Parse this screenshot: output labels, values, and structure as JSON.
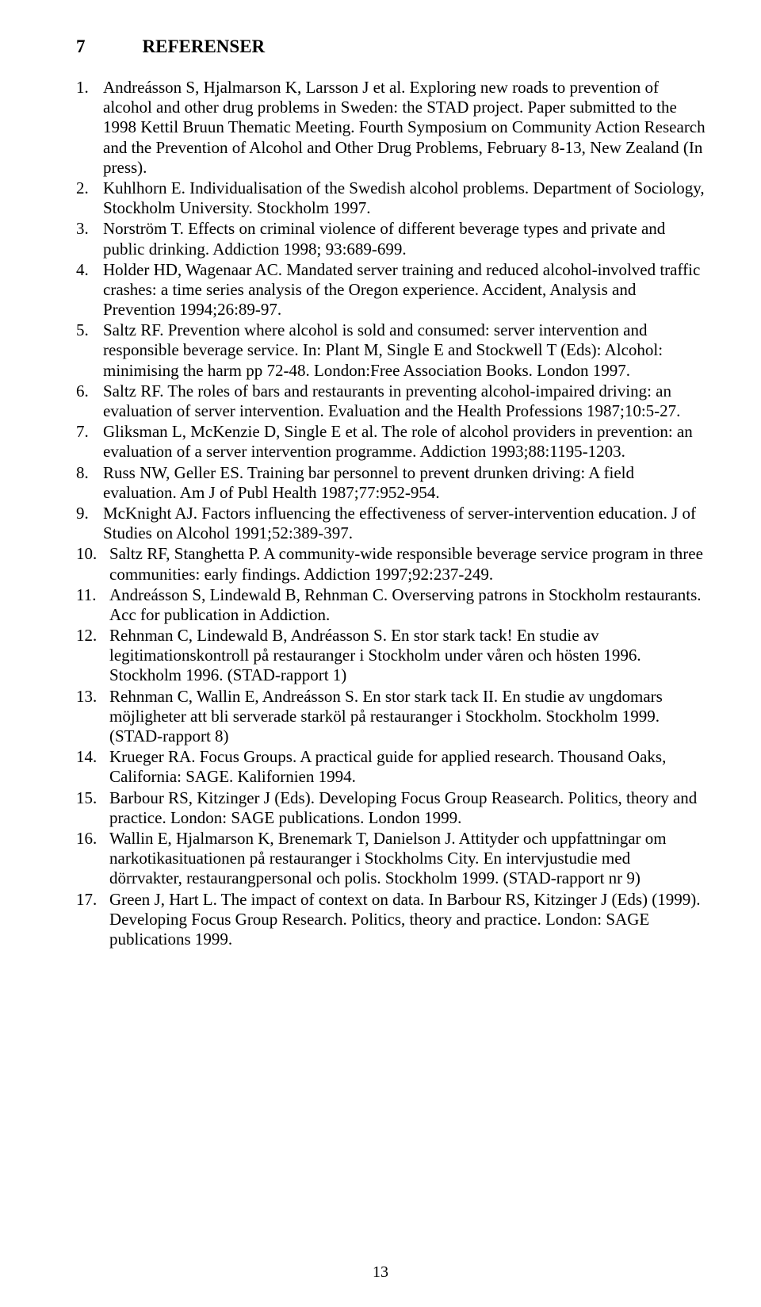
{
  "heading": {
    "number": "7",
    "title": "REFERENSER"
  },
  "references": [
    {
      "num": "1.",
      "text": "Andreásson S, Hjalmarson K, Larsson J et al. Exploring new roads to prevention of alcohol and other drug problems in Sweden: the STAD project. Paper submitted to the 1998 Kettil Bruun Thematic Meeting. Fourth Symposium on Community Action Research and the Prevention of Alcohol and Other Drug Problems, February 8-13, New Zealand (In press)."
    },
    {
      "num": "2.",
      "text": "Kuhlhorn E. Individualisation of the Swedish alcohol problems. Department of Sociology, Stockholm University. Stockholm 1997."
    },
    {
      "num": "3.",
      "text": "Norström T. Effects on criminal violence of different beverage types and private and public drinking. Addiction 1998; 93:689-699."
    },
    {
      "num": "4.",
      "text": "Holder HD, Wagenaar AC. Mandated server training and reduced alcohol-involved traffic crashes: a time series analysis of the Oregon experience. Accident, Analysis and Prevention 1994;26:89-97."
    },
    {
      "num": "5.",
      "text": "Saltz RF. Prevention where alcohol is sold and consumed: server intervention and responsible beverage service. In: Plant M, Single E and Stockwell T (Eds): Alcohol: minimising the harm pp 72-48. London:Free Association Books. London 1997."
    },
    {
      "num": "6.",
      "text": "Saltz RF. The roles of bars and restaurants in preventing alcohol-impaired driving: an evaluation of server intervention. Evaluation and the Health Professions 1987;10:5-27."
    },
    {
      "num": "7.",
      "text": "Gliksman L, McKenzie D, Single E et al. The role of alcohol providers in prevention: an evaluation of a server intervention programme. Addiction 1993;88:1195-1203."
    },
    {
      "num": "8.",
      "text": "Russ NW, Geller ES. Training bar personnel to prevent drunken driving: A field evaluation. Am J of Publ Health 1987;77:952-954."
    },
    {
      "num": "9.",
      "text": "McKnight AJ. Factors influencing the effectiveness of server-intervention education. J of Studies on Alcohol 1991;52:389-397."
    },
    {
      "num": "10.",
      "text": "Saltz RF, Stanghetta P.  A community-wide responsible beverage service program in three communities: early findings. Addiction 1997;92:237-249."
    },
    {
      "num": "11.",
      "text": "Andreásson S, Lindewald B, Rehnman C. Overserving patrons in Stockholm restaurants. Acc for publication in Addiction."
    },
    {
      "num": "12.",
      "text": "Rehnman C, Lindewald B, Andréasson S. En stor stark tack! En studie av legitimationskontroll på restauranger i Stockholm under våren och hösten 1996. Stockholm 1996. (STAD-rapport 1)"
    },
    {
      "num": "13.",
      "text": "Rehnman C, Wallin E, Andreásson S. En stor stark tack II. En studie av ungdomars möjligheter att bli serverade starköl på restauranger i Stockholm. Stockholm 1999. (STAD-rapport 8)"
    },
    {
      "num": "14.",
      "text": "Krueger RA. Focus Groups. A practical guide for applied research. Thousand Oaks, California: SAGE. Kalifornien 1994."
    },
    {
      "num": "15.",
      "text": "Barbour RS, Kitzinger J (Eds). Developing Focus Group Reasearch. Politics, theory and practice. London: SAGE publications. London 1999."
    },
    {
      "num": "16.",
      "text": "Wallin E, Hjalmarson K, Brenemark T, Danielson J. Attityder och uppfattningar om narkotikasituationen på restauranger i Stockholms City. En intervjustudie med dörrvakter, restaurangpersonal och polis. Stockholm 1999. (STAD-rapport nr 9)"
    },
    {
      "num": "17.",
      "text": "Green J, Hart L. The impact of context on data. In Barbour RS, Kitzinger J (Eds) (1999). Developing Focus Group Research. Politics, theory and practice. London: SAGE publications 1999."
    }
  ],
  "page_number": "13"
}
